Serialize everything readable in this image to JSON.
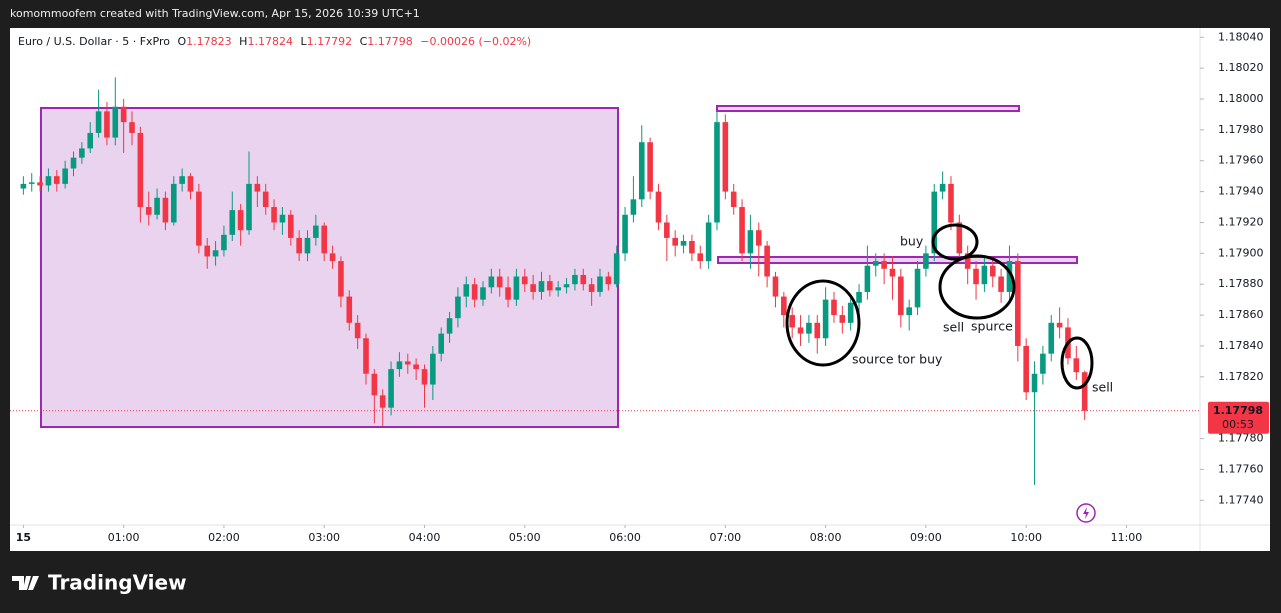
{
  "watermark_text": "komommoofem created with TradingView.com, Apr 15, 2026 10:39 UTC+1",
  "brand": "TradingView",
  "chart_data": {
    "type": "candlestick",
    "title": "Euro / U.S. Dollar · 5 · FxPro",
    "ohlc_labels": [
      "O",
      "H",
      "L",
      "C"
    ],
    "change": "−0.00026 (−0.02%)",
    "countdown": "00:53",
    "up_color": "#089981",
    "down_color": "#f23645",
    "grid": false,
    "annotations": [
      "buy",
      "sell",
      "spurce",
      "source tor buy",
      "sell"
    ],
    "xlim": [
      -8,
      704
    ],
    "xticks": [
      {
        "value": 0,
        "label": "15"
      },
      {
        "value": 60,
        "label": "01:00"
      },
      {
        "value": 120,
        "label": "02:00"
      },
      {
        "value": 180,
        "label": "03:00"
      },
      {
        "value": 240,
        "label": "04:00"
      },
      {
        "value": 300,
        "label": "05:00"
      },
      {
        "value": 360,
        "label": "06:00"
      },
      {
        "value": 420,
        "label": "07:00"
      },
      {
        "value": 480,
        "label": "08:00"
      },
      {
        "value": 540,
        "label": "09:00"
      },
      {
        "value": 600,
        "label": "10:00"
      },
      {
        "value": 660,
        "label": "11:00"
      }
    ],
    "ylim": [
      1.17724,
      1.18046
    ],
    "yticks": [
      {
        "value": 1.1804,
        "label": "1.18040"
      },
      {
        "value": 1.1802,
        "label": "1.18020"
      },
      {
        "value": 1.18,
        "label": "1.18000"
      },
      {
        "value": 1.1798,
        "label": "1.17980"
      },
      {
        "value": 1.1796,
        "label": "1.17960"
      },
      {
        "value": 1.1794,
        "label": "1.17940"
      },
      {
        "value": 1.1792,
        "label": "1.17920"
      },
      {
        "value": 1.179,
        "label": "1.17900"
      },
      {
        "value": 1.1788,
        "label": "1.17880"
      },
      {
        "value": 1.1786,
        "label": "1.17860"
      },
      {
        "value": 1.1784,
        "label": "1.17840"
      },
      {
        "value": 1.1782,
        "label": "1.17820"
      },
      {
        "value": 1.1778,
        "label": "1.17780"
      },
      {
        "value": 1.1776,
        "label": "1.17760"
      },
      {
        "value": 1.1774,
        "label": "1.17740"
      }
    ],
    "x": [
      0,
      5,
      10,
      15,
      20,
      25,
      30,
      35,
      40,
      45,
      50,
      55,
      60,
      65,
      70,
      75,
      80,
      85,
      90,
      95,
      100,
      105,
      110,
      115,
      120,
      125,
      130,
      135,
      140,
      145,
      150,
      155,
      160,
      165,
      170,
      175,
      180,
      185,
      190,
      195,
      200,
      205,
      210,
      215,
      220,
      225,
      230,
      235,
      240,
      245,
      250,
      255,
      260,
      265,
      270,
      275,
      280,
      285,
      290,
      295,
      300,
      305,
      310,
      315,
      320,
      325,
      330,
      335,
      340,
      345,
      350,
      355,
      360,
      365,
      370,
      375,
      380,
      385,
      390,
      395,
      400,
      405,
      410,
      415,
      420,
      425,
      430,
      435,
      440,
      445,
      450,
      455,
      460,
      465,
      470,
      475,
      480,
      485,
      490,
      495,
      500,
      505,
      510,
      515,
      520,
      525,
      530,
      535,
      540,
      545,
      550,
      555,
      560,
      565,
      570,
      575,
      580,
      585,
      590,
      595,
      600,
      605,
      610,
      615,
      620,
      625,
      630,
      635
    ],
    "open": [
      1.17942,
      1.17945,
      1.17946,
      1.17944,
      1.1795,
      1.17945,
      1.17955,
      1.17962,
      1.17968,
      1.17978,
      1.17992,
      1.17975,
      1.17995,
      1.17985,
      1.17978,
      1.1793,
      1.17925,
      1.17936,
      1.1792,
      1.17945,
      1.1795,
      1.1794,
      1.17905,
      1.17898,
      1.17902,
      1.17912,
      1.17928,
      1.17915,
      1.17945,
      1.1794,
      1.1793,
      1.1792,
      1.17925,
      1.1791,
      1.179,
      1.1791,
      1.17918,
      1.179,
      1.17895,
      1.17872,
      1.17855,
      1.17845,
      1.17822,
      1.17808,
      1.178,
      1.17825,
      1.1783,
      1.17828,
      1.17825,
      1.17815,
      1.17835,
      1.17848,
      1.17858,
      1.17872,
      1.1788,
      1.1787,
      1.17878,
      1.17885,
      1.17878,
      1.1787,
      1.17885,
      1.1788,
      1.17875,
      1.17882,
      1.17876,
      1.17878,
      1.1788,
      1.17886,
      1.1788,
      1.17875,
      1.17885,
      1.1788,
      1.179,
      1.17925,
      1.17935,
      1.17972,
      1.1794,
      1.1792,
      1.1791,
      1.17905,
      1.17908,
      1.179,
      1.17895,
      1.1792,
      1.17985,
      1.1794,
      1.1793,
      1.179,
      1.17915,
      1.17905,
      1.17885,
      1.17872,
      1.1786,
      1.17852,
      1.17848,
      1.17855,
      1.17845,
      1.1787,
      1.1786,
      1.17855,
      1.17868,
      1.17875,
      1.17892,
      1.17895,
      1.1789,
      1.17885,
      1.1786,
      1.17865,
      1.1789,
      1.179,
      1.1794,
      1.17945,
      1.1792,
      1.179,
      1.1789,
      1.1788,
      1.17892,
      1.17885,
      1.17875,
      1.17895,
      1.1784,
      1.1781,
      1.17822,
      1.17835,
      1.17855,
      1.17852,
      1.17832,
      1.17823
    ],
    "high": [
      1.1795,
      1.17952,
      1.1795,
      1.17955,
      1.17954,
      1.1796,
      1.17966,
      1.17972,
      1.17985,
      1.18006,
      1.17998,
      1.18014,
      1.18,
      1.17992,
      1.17982,
      1.1794,
      1.17942,
      1.1794,
      1.1795,
      1.17955,
      1.17952,
      1.17945,
      1.1791,
      1.17908,
      1.17918,
      1.1794,
      1.17932,
      1.17966,
      1.1795,
      1.17945,
      1.17935,
      1.1793,
      1.17928,
      1.17915,
      1.17915,
      1.17925,
      1.1792,
      1.17905,
      1.17898,
      1.17876,
      1.1786,
      1.17848,
      1.17825,
      1.17812,
      1.1783,
      1.17836,
      1.17835,
      1.17832,
      1.17828,
      1.1784,
      1.17852,
      1.17862,
      1.17878,
      1.17885,
      1.17884,
      1.17882,
      1.1789,
      1.1789,
      1.17885,
      1.1789,
      1.1789,
      1.17886,
      1.17888,
      1.17886,
      1.17882,
      1.17884,
      1.1789,
      1.1789,
      1.17884,
      1.1789,
      1.17888,
      1.17905,
      1.1793,
      1.1795,
      1.17983,
      1.17975,
      1.17945,
      1.17925,
      1.17915,
      1.17912,
      1.17912,
      1.17905,
      1.17925,
      1.17992,
      1.1799,
      1.17945,
      1.17935,
      1.17925,
      1.1792,
      1.17908,
      1.17888,
      1.17875,
      1.17865,
      1.1786,
      1.1786,
      1.1786,
      1.17878,
      1.17875,
      1.17866,
      1.17872,
      1.1788,
      1.17905,
      1.179,
      1.179,
      1.17898,
      1.1789,
      1.1787,
      1.17895,
      1.17905,
      1.17945,
      1.17953,
      1.1795,
      1.17925,
      1.17905,
      1.17895,
      1.17898,
      1.17896,
      1.1789,
      1.17905,
      1.179,
      1.17845,
      1.1783,
      1.1784,
      1.1786,
      1.17865,
      1.17858,
      1.1784,
      1.17824
    ],
    "low": [
      1.17938,
      1.1794,
      1.1794,
      1.1794,
      1.1794,
      1.17942,
      1.1795,
      1.17958,
      1.17965,
      1.17975,
      1.1797,
      1.1797,
      1.17965,
      1.1797,
      1.1792,
      1.17918,
      1.17922,
      1.17915,
      1.17918,
      1.1794,
      1.17935,
      1.179,
      1.1789,
      1.17892,
      1.17898,
      1.17908,
      1.17905,
      1.17912,
      1.1793,
      1.17925,
      1.17915,
      1.17912,
      1.17905,
      1.17895,
      1.17895,
      1.17905,
      1.17895,
      1.1789,
      1.17865,
      1.1785,
      1.17838,
      1.17815,
      1.1779,
      1.17788,
      1.17795,
      1.1782,
      1.17822,
      1.17818,
      1.178,
      1.17805,
      1.1783,
      1.17842,
      1.17852,
      1.17865,
      1.17865,
      1.17866,
      1.17874,
      1.17872,
      1.17865,
      1.17866,
      1.17875,
      1.1787,
      1.1787,
      1.17872,
      1.17872,
      1.17874,
      1.17876,
      1.17876,
      1.17866,
      1.17872,
      1.17876,
      1.17878,
      1.17895,
      1.1792,
      1.1793,
      1.17935,
      1.17915,
      1.17895,
      1.17898,
      1.179,
      1.17895,
      1.1789,
      1.1789,
      1.17915,
      1.17935,
      1.17925,
      1.17895,
      1.1789,
      1.17885,
      1.17878,
      1.17865,
      1.17852,
      1.17845,
      1.1784,
      1.17842,
      1.17835,
      1.1784,
      1.17855,
      1.17848,
      1.1785,
      1.1786,
      1.1787,
      1.17885,
      1.1788,
      1.1787,
      1.17852,
      1.1785,
      1.1786,
      1.17885,
      1.17895,
      1.17935,
      1.17915,
      1.17895,
      1.1788,
      1.1787,
      1.17875,
      1.17878,
      1.17868,
      1.1787,
      1.1783,
      1.17805,
      1.1775,
      1.17815,
      1.1783,
      1.17845,
      1.17828,
      1.17818,
      1.17792
    ],
    "close": [
      1.17945,
      1.17946,
      1.17944,
      1.1795,
      1.17945,
      1.17955,
      1.17962,
      1.17968,
      1.17978,
      1.17992,
      1.17975,
      1.17995,
      1.17985,
      1.17978,
      1.1793,
      1.17925,
      1.17936,
      1.1792,
      1.17945,
      1.1795,
      1.1794,
      1.17905,
      1.17898,
      1.17902,
      1.17912,
      1.17928,
      1.17915,
      1.17945,
      1.1794,
      1.1793,
      1.1792,
      1.17925,
      1.1791,
      1.179,
      1.1791,
      1.17918,
      1.179,
      1.17895,
      1.17872,
      1.17855,
      1.17845,
      1.17822,
      1.17808,
      1.178,
      1.17825,
      1.1783,
      1.17828,
      1.17825,
      1.17815,
      1.17835,
      1.17848,
      1.17858,
      1.17872,
      1.1788,
      1.1787,
      1.17878,
      1.17885,
      1.17878,
      1.1787,
      1.17885,
      1.1788,
      1.17875,
      1.17882,
      1.17876,
      1.17878,
      1.1788,
      1.17886,
      1.1788,
      1.17875,
      1.17885,
      1.1788,
      1.179,
      1.17925,
      1.17935,
      1.17972,
      1.1794,
      1.1792,
      1.1791,
      1.17905,
      1.17908,
      1.179,
      1.17895,
      1.1792,
      1.17985,
      1.1794,
      1.1793,
      1.179,
      1.17915,
      1.17905,
      1.17885,
      1.17872,
      1.1786,
      1.17852,
      1.17848,
      1.17855,
      1.17845,
      1.1787,
      1.1786,
      1.17855,
      1.17868,
      1.17875,
      1.17892,
      1.17895,
      1.1789,
      1.17885,
      1.1786,
      1.17865,
      1.1789,
      1.179,
      1.1794,
      1.17945,
      1.1792,
      1.179,
      1.1789,
      1.1788,
      1.17892,
      1.17885,
      1.17875,
      1.17895,
      1.1784,
      1.1781,
      1.17822,
      1.17835,
      1.17855,
      1.17852,
      1.17832,
      1.17823,
      1.17798
    ]
  }
}
